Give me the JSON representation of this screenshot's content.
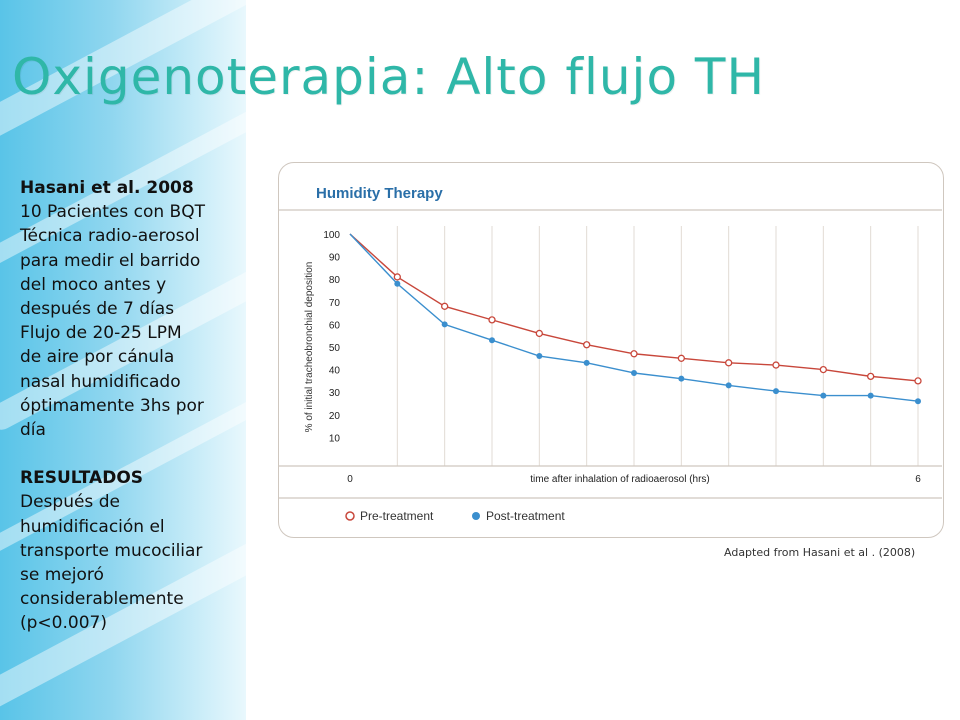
{
  "slide": {
    "title": "Oxigenoterapia: Alto flujo TH",
    "study": "Hasani et al. 2008",
    "details": [
      "10 Pacientes con BQT",
      "Técnica radio-aerosol",
      "para medir el barrido",
      "del moco antes y",
      "después de 7 días",
      "Flujo  de 20-25 LPM",
      "de aire por cánula",
      "nasal humidificado",
      "óptimamente 3hs por",
      "día"
    ],
    "results_heading": "RESULTADOS",
    "results": [
      "Después de",
      "humidificación el",
      "transporte mucociliar",
      "se mejoró",
      "considerablemente",
      "(p<0.007)"
    ],
    "credit": "Adapted from Hasani  et al . (2008)"
  },
  "colors": {
    "title": "#2fb7a8",
    "chart_title": "#2a6fa8",
    "pre_treatment": "#c8473b",
    "post_treatment": "#3b8fce",
    "side_band": "#59c4e8"
  },
  "chart_data": {
    "type": "line",
    "title": "Humidity Therapy",
    "xlabel": "time after inhalation of radioaerosol (hrs)",
    "ylabel": "% of initial tracheobronchial deposition",
    "x_tick_labels": [
      "0",
      "6"
    ],
    "xlim": [
      0,
      6
    ],
    "ylim": [
      0,
      100
    ],
    "y_ticks": [
      10,
      20,
      30,
      40,
      50,
      60,
      70,
      80,
      90,
      100
    ],
    "grid": "vertical",
    "legend_position": "bottom",
    "x": [
      0,
      0.5,
      1,
      1.5,
      2,
      2.5,
      3,
      3.5,
      4,
      4.5,
      5,
      5.5,
      6
    ],
    "series": [
      {
        "name": "Pre-treatment",
        "marker": "open-circle",
        "values": [
          100,
          81,
          68,
          62,
          56,
          51,
          47,
          45,
          43,
          42,
          40,
          37,
          35
        ]
      },
      {
        "name": "Post-treatment",
        "marker": "filled-circle",
        "values": [
          100,
          78,
          60,
          53,
          46,
          43,
          38.5,
          36,
          33,
          30.5,
          28.5,
          28.5,
          26
        ]
      }
    ]
  }
}
